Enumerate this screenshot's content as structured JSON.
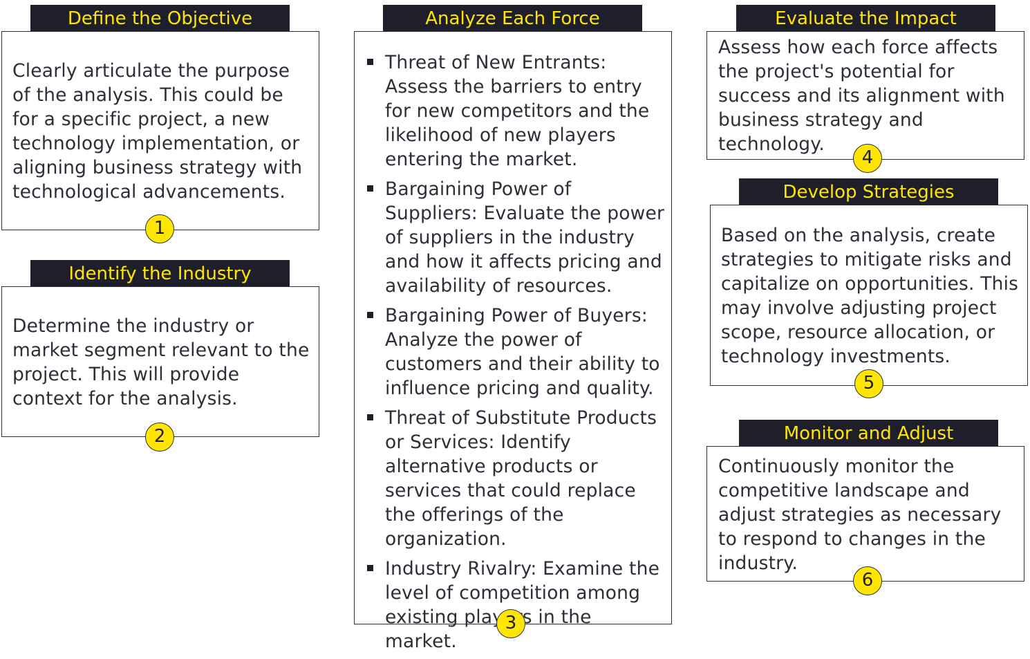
{
  "steps": [
    {
      "title": "Define the Objective",
      "text": "Clearly articulate the purpose of the analysis. This could be for a specific project, a new technology implementation, or aligning business strategy with technological advancements.",
      "number": "1"
    },
    {
      "title": "Identify the Industry",
      "text": "Determine the industry or market segment relevant to the project. This will provide context for the analysis.",
      "number": "2"
    },
    {
      "title": "Analyze Each Force",
      "items": [
        "Threat of New Entrants: Assess the barriers to entry for new competitors and the likelihood of new players entering the market.",
        "Bargaining Power of Suppliers: Evaluate the power of suppliers in the industry and how it affects pricing and availability of resources.",
        "Bargaining Power of Buyers: Analyze the power of customers and their ability to influence pricing and quality.",
        "Threat of Substitute Products or Services: Identify alternative products or services that could replace the offerings of the organization.",
        "Industry Rivalry: Examine the level of competition among existing players in the market."
      ],
      "number": "3"
    },
    {
      "title": "Evaluate the Impact",
      "text": "Assess how each force affects the project's potential for success and its alignment with business strategy and technology.",
      "number": "4"
    },
    {
      "title": "Develop Strategies",
      "text": "Based on the analysis, create strategies to mitigate risks and capitalize on opportunities. This may involve adjusting project scope, resource allocation, or technology investments.",
      "number": "5"
    },
    {
      "title": "Monitor and Adjust",
      "text": "Continuously monitor the competitive landscape and adjust strategies as necessary to respond to changes in the industry.",
      "number": "6"
    }
  ],
  "colors": {
    "accent": "#ffe600",
    "dark": "#1f1f2b",
    "text": "#2e2e38",
    "border": "#2e2e38"
  }
}
